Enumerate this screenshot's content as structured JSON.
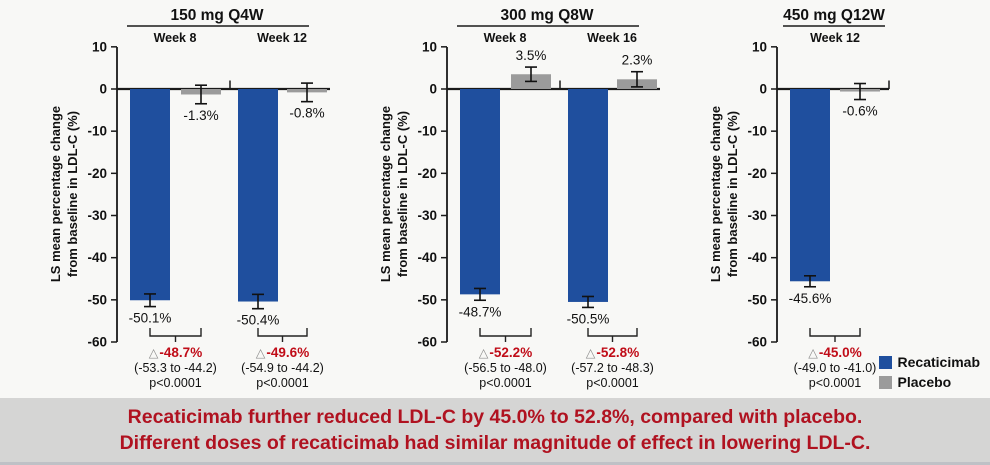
{
  "colors": {
    "recaticimab": "#1f4f9e",
    "placebo": "#9b9b9b",
    "delta_red": "#c00c18",
    "axis": "#1a1a1a",
    "banner_red": "#b01220",
    "banner_bg": "#d5d5d4"
  },
  "legend": {
    "items": [
      {
        "label": "Recaticimab",
        "color": "#1f4f9e"
      },
      {
        "label": "Placebo",
        "color": "#9b9b9b"
      }
    ]
  },
  "banner": {
    "line1": "Recaticimab further reduced LDL-C by 45.0% to 52.8%, compared with placebo.",
    "line2": "Different doses of recaticimab had similar magnitude of effect in lowering LDL-C."
  },
  "chart_data": [
    {
      "type": "bar",
      "title": "150 mg Q4W",
      "ylabel_line1": "LS mean percentage change",
      "ylabel_line2": "from baseline in LDL-C (%)",
      "ylim": [
        -60,
        10
      ],
      "yticks": [
        10,
        0,
        -10,
        -20,
        -30,
        -40,
        -50,
        -60
      ],
      "legend_position": "bottom-right",
      "grid": false,
      "series_names": [
        "Recaticimab",
        "Placebo"
      ],
      "groups": [
        {
          "label": "Week 8",
          "bars": [
            {
              "series": "Recaticimab",
              "value": -50.1,
              "err": 1.5,
              "label": "-50.1%"
            },
            {
              "series": "Placebo",
              "value": -1.3,
              "err": 2.2,
              "label": "-1.3%"
            }
          ],
          "difference": {
            "marker": "△",
            "delta": "-48.7%",
            "ci": "(-53.3 to -44.2)",
            "p": "p<0.0001"
          }
        },
        {
          "label": "Week 12",
          "bars": [
            {
              "series": "Recaticimab",
              "value": -50.4,
              "err": 1.7,
              "label": "-50.4%"
            },
            {
              "series": "Placebo",
              "value": -0.8,
              "err": 2.2,
              "label": "-0.8%"
            }
          ],
          "difference": {
            "marker": "△",
            "delta": "-49.6%",
            "ci": "(-54.9 to -44.2)",
            "p": "p<0.0001"
          }
        }
      ]
    },
    {
      "type": "bar",
      "title": "300 mg Q8W",
      "ylabel_line1": "LS mean percentage change",
      "ylabel_line2": "from baseline in LDL-C (%)",
      "ylim": [
        -60,
        10
      ],
      "yticks": [
        10,
        0,
        -10,
        -20,
        -30,
        -40,
        -50,
        -60
      ],
      "grid": false,
      "series_names": [
        "Recaticimab",
        "Placebo"
      ],
      "groups": [
        {
          "label": "Week 8",
          "bars": [
            {
              "series": "Recaticimab",
              "value": -48.7,
              "err": 1.4,
              "label": "-48.7%"
            },
            {
              "series": "Placebo",
              "value": 3.5,
              "err": 1.7,
              "label": "3.5%"
            }
          ],
          "difference": {
            "marker": "△",
            "delta": "-52.2%",
            "ci": "(-56.5 to -48.0)",
            "p": "p<0.0001"
          }
        },
        {
          "label": "Week 16",
          "bars": [
            {
              "series": "Recaticimab",
              "value": -50.5,
              "err": 1.3,
              "label": "-50.5%"
            },
            {
              "series": "Placebo",
              "value": 2.3,
              "err": 1.8,
              "label": "2.3%"
            }
          ],
          "difference": {
            "marker": "△",
            "delta": "-52.8%",
            "ci": "(-57.2 to -48.3)",
            "p": "p<0.0001"
          }
        }
      ]
    },
    {
      "type": "bar",
      "title": "450 mg Q12W",
      "ylabel_line1": "LS mean percentage change",
      "ylabel_line2": "from baseline in LDL-C (%)",
      "ylim": [
        -60,
        10
      ],
      "yticks": [
        10,
        0,
        -10,
        -20,
        -30,
        -40,
        -50,
        -60
      ],
      "grid": false,
      "series_names": [
        "Recaticimab",
        "Placebo"
      ],
      "groups": [
        {
          "label": "Week 12",
          "bars": [
            {
              "series": "Recaticimab",
              "value": -45.6,
              "err": 1.3,
              "label": "-45.6%"
            },
            {
              "series": "Placebo",
              "value": -0.6,
              "err": 1.9,
              "label": "-0.6%"
            }
          ],
          "difference": {
            "marker": "△",
            "delta": "-45.0%",
            "ci": "(-49.0 to -41.0)",
            "p": "p<0.0001"
          }
        }
      ]
    }
  ]
}
